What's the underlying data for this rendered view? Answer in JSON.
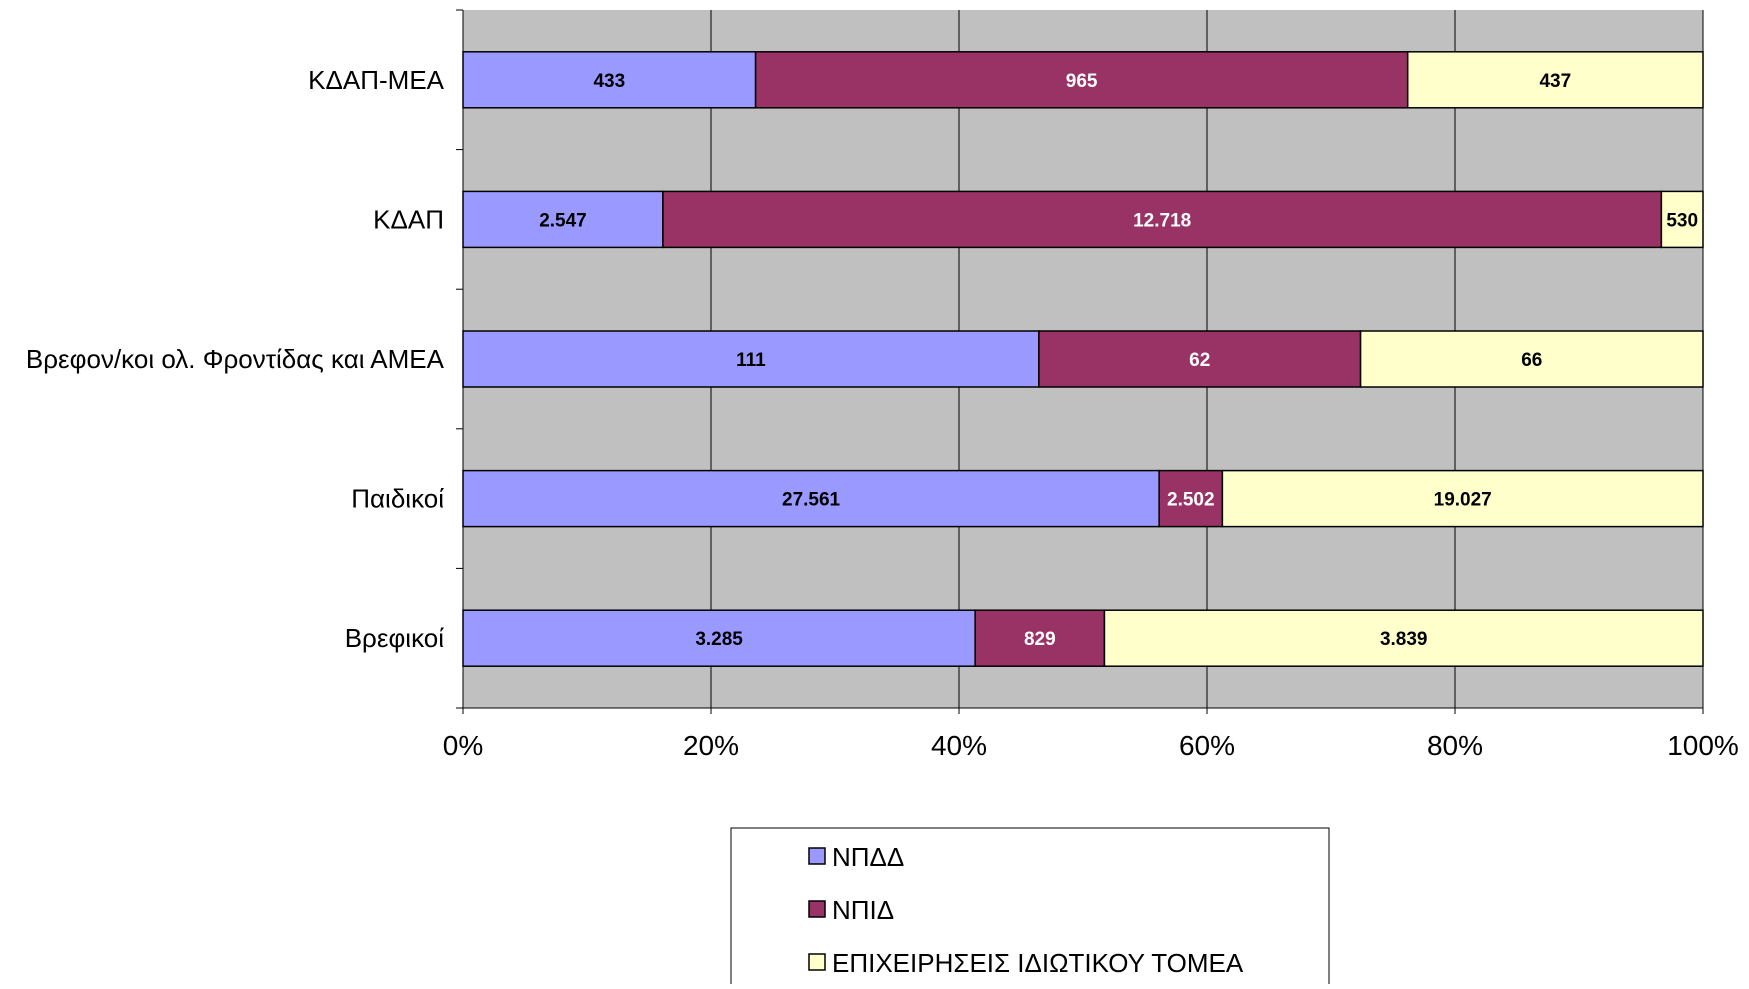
{
  "chart_data": {
    "type": "bar",
    "orientation": "horizontal",
    "stacking": "percent",
    "categories": [
      "ΚΔΑΠ-ΜΕΑ",
      "ΚΔΑΠ",
      "Βρεφον/κοι ολ. Φροντίδας και ΑΜΕΑ",
      "Παιδικοί",
      "Βρεφικοί"
    ],
    "series": [
      {
        "name": "ΝΠΔΔ",
        "color": "#9999ff",
        "values": [
          433,
          2547,
          111,
          27561,
          3285
        ],
        "labels": [
          "433",
          "2.547",
          "111",
          "27.561",
          "3.285"
        ],
        "label_color": "#000000"
      },
      {
        "name": "ΝΠΙΔ",
        "color": "#993366",
        "values": [
          965,
          12718,
          62,
          2502,
          829
        ],
        "labels": [
          "965",
          "12.718",
          "62",
          "2.502",
          "829"
        ],
        "label_color": "#ffffff"
      },
      {
        "name": "ΕΠΙΧΕΙΡΗΣΕΙΣ ΙΔΙΩΤΙΚΟΥ ΤΟΜΕΑ",
        "color": "#ffffcc",
        "values": [
          437,
          530,
          66,
          19027,
          3839
        ],
        "labels": [
          "437",
          "530",
          "66",
          "19.027",
          "3.839"
        ],
        "label_color": "#000000"
      }
    ],
    "x_ticks": [
      "0%",
      "20%",
      "40%",
      "60%",
      "80%",
      "100%"
    ],
    "xlim": [
      0,
      100
    ],
    "grid": true,
    "plot_background": "#c0c0c0",
    "legend_position": "bottom",
    "xlabel": "",
    "ylabel": "",
    "title": ""
  }
}
